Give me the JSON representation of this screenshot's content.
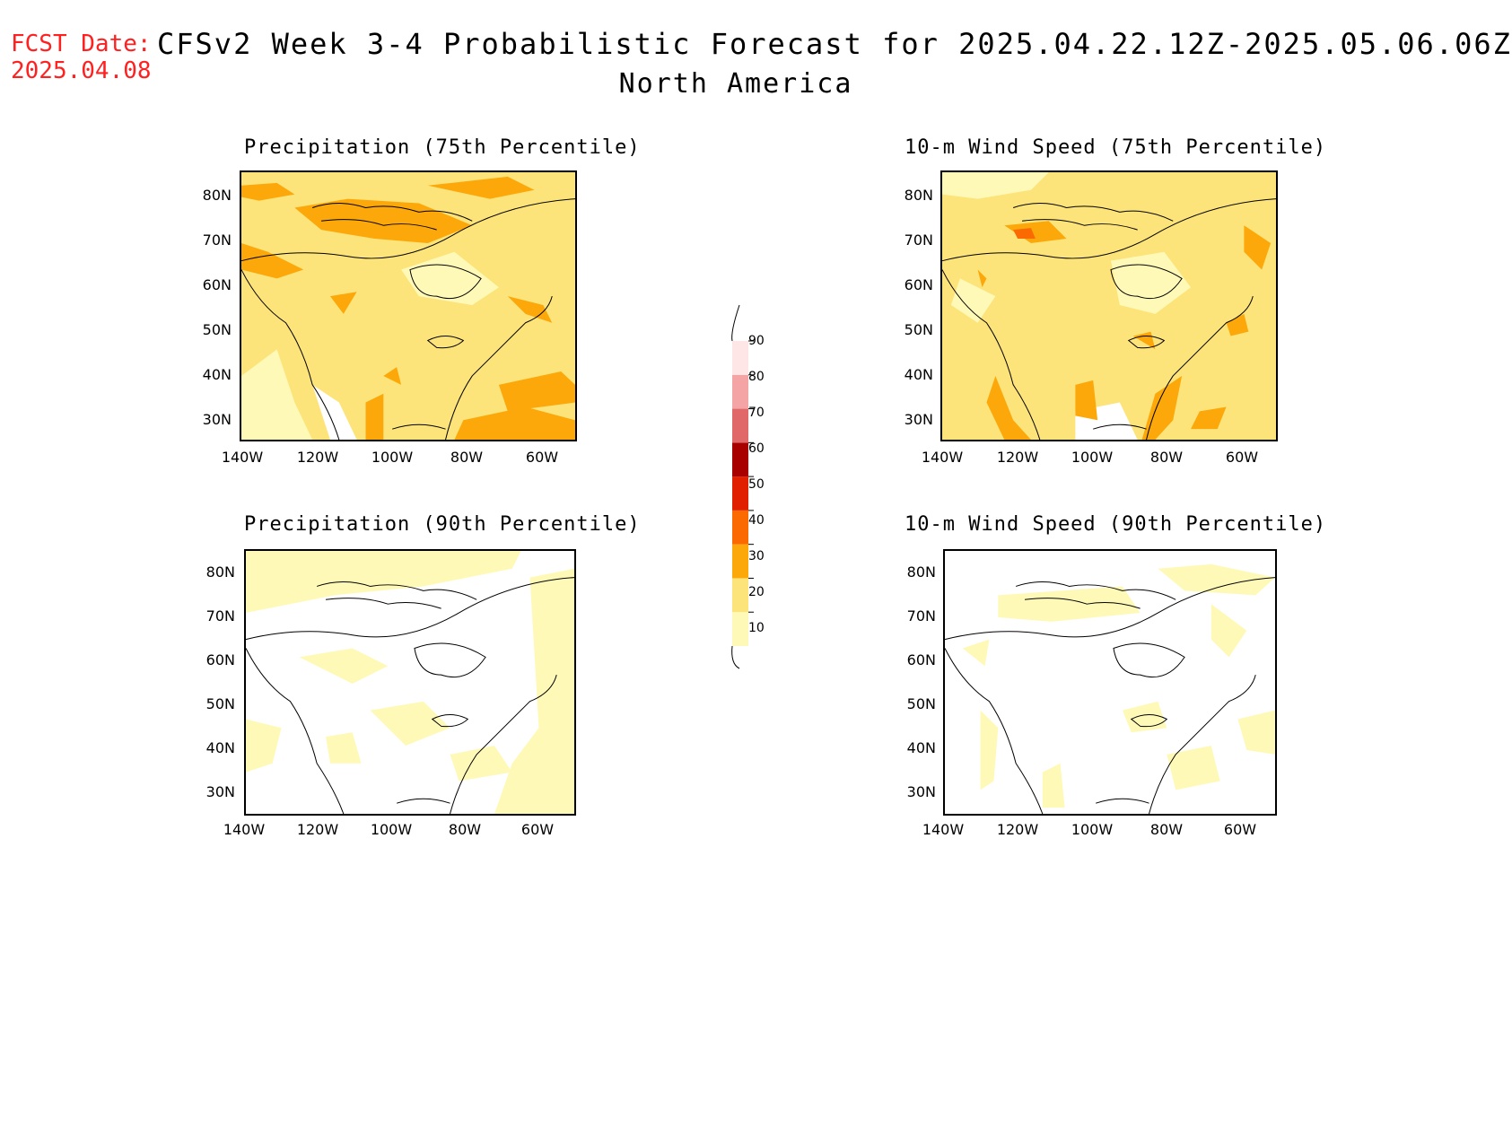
{
  "header": {
    "fcst_label": "FCST Date:",
    "fcst_date": "2025.04.08",
    "title": "CFSv2 Week 3-4 Probabilistic Forecast for 2025.04.22.12Z-2025.05.06.06Z",
    "subtitle": "North America"
  },
  "panels": [
    {
      "title": "Precipitation (75th Percentile)"
    },
    {
      "title": "10-m Wind Speed (75th Percentile)"
    },
    {
      "title": "Precipitation (90th Percentile)"
    },
    {
      "title": "10-m Wind Speed (90th Percentile)"
    }
  ],
  "axes": {
    "lat_labels": [
      "80N",
      "70N",
      "60N",
      "50N",
      "40N",
      "30N"
    ],
    "lon_labels": [
      "140W",
      "120W",
      "100W",
      "80W",
      "60W"
    ]
  },
  "colorbar": {
    "levels": [
      "10",
      "20",
      "30",
      "40",
      "50",
      "60",
      "70",
      "80",
      "90"
    ],
    "colors": [
      "#fff9b8",
      "#fde47a",
      "#fca80a",
      "#fb6a00",
      "#e02000",
      "#a80000",
      "#e06868",
      "#f4a4a4",
      "#ffe6e6"
    ]
  }
}
